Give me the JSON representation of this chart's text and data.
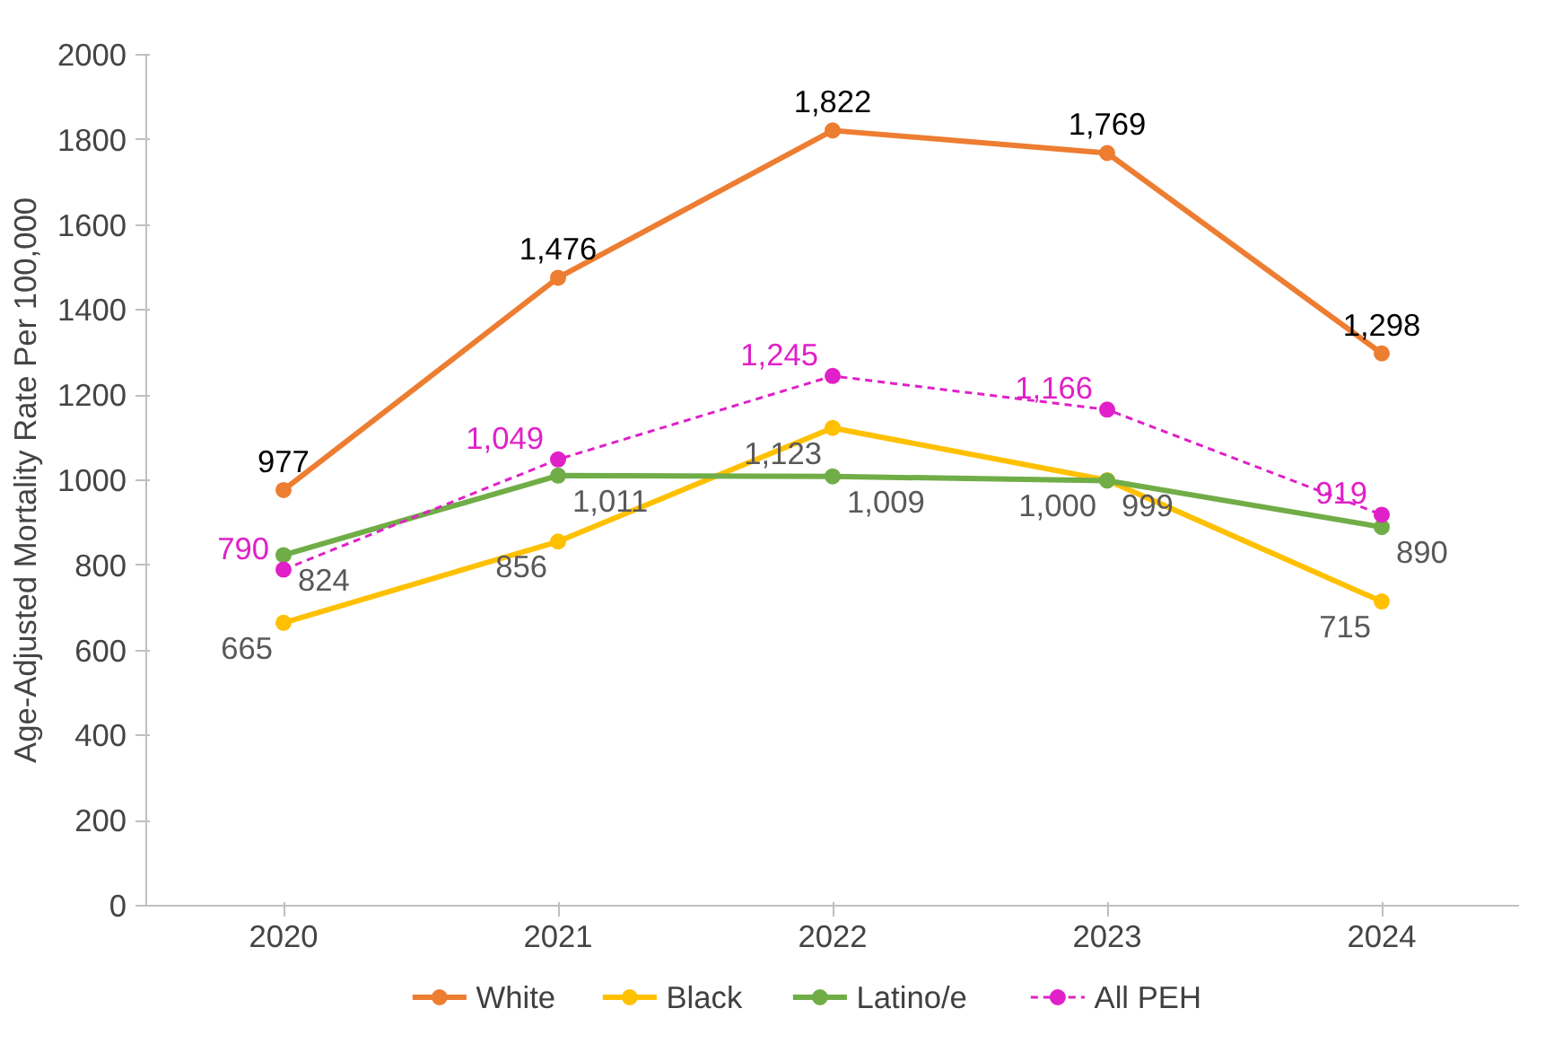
{
  "chart_data": {
    "type": "line",
    "ylabel": "Age-Adjusted Mortality Rate Per 100,000",
    "categories": [
      "2020",
      "2021",
      "2022",
      "2023",
      "2024"
    ],
    "ylim": [
      0,
      2000
    ],
    "yticks": [
      0,
      200,
      400,
      600,
      800,
      1000,
      1200,
      1400,
      1600,
      1800,
      2000
    ],
    "grid": false,
    "legend": "bottom",
    "marker": "circle",
    "series": [
      {
        "name": "White",
        "color": "#ed7d31",
        "values": [
          977,
          1476,
          1822,
          1769,
          1298
        ],
        "value_labels": [
          "977",
          "1,476",
          "1,822",
          "1,769",
          "1,298"
        ]
      },
      {
        "name": "Black",
        "color": "#ffc000",
        "values": [
          665,
          856,
          1123,
          1000,
          715
        ],
        "value_labels": [
          "665",
          "856",
          "1,123",
          "1,000",
          "715"
        ]
      },
      {
        "name": "Latino/e",
        "color": "#70ad47",
        "values": [
          824,
          1011,
          1009,
          999,
          890
        ],
        "value_labels": [
          "824",
          "1,011",
          "1,009",
          "999",
          "890"
        ]
      },
      {
        "name": "All PEH",
        "color": "#e020c8",
        "line_style": "dashed",
        "values": [
          790,
          1049,
          1245,
          1166,
          919
        ],
        "value_labels": [
          "790",
          "1,049",
          "1,245",
          "1,166",
          "919"
        ]
      }
    ]
  }
}
